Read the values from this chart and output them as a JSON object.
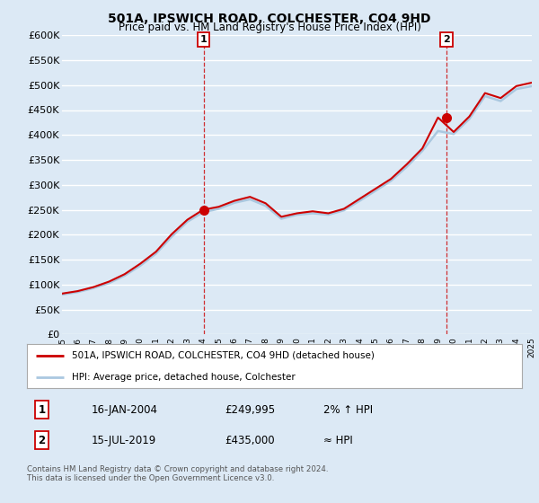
{
  "title": "501A, IPSWICH ROAD, COLCHESTER, CO4 9HD",
  "subtitle": "Price paid vs. HM Land Registry's House Price Index (HPI)",
  "bg_color": "#dce9f5",
  "plot_bg_color": "#dce9f5",
  "red_line_color": "#cc0000",
  "blue_line_color": "#aac8e0",
  "grid_color": "#ffffff",
  "ylim": [
    0,
    600000
  ],
  "yticks": [
    0,
    50000,
    100000,
    150000,
    200000,
    250000,
    300000,
    350000,
    400000,
    450000,
    500000,
    550000,
    600000
  ],
  "sale1_x": 2004.04,
  "sale1_y": 249995,
  "sale2_x": 2019.54,
  "sale2_y": 435000,
  "legend_label1": "501A, IPSWICH ROAD, COLCHESTER, CO4 9HD (detached house)",
  "legend_label2": "HPI: Average price, detached house, Colchester",
  "table_row1": [
    "1",
    "16-JAN-2004",
    "£249,995",
    "2% ↑ HPI"
  ],
  "table_row2": [
    "2",
    "15-JUL-2019",
    "£435,000",
    "≈ HPI"
  ],
  "footer": "Contains HM Land Registry data © Crown copyright and database right 2024.\nThis data is licensed under the Open Government Licence v3.0.",
  "xmin": 1995,
  "xmax": 2025,
  "years": [
    1995,
    1996,
    1997,
    1998,
    1999,
    2000,
    2001,
    2002,
    2003,
    2004,
    2005,
    2006,
    2007,
    2008,
    2009,
    2010,
    2011,
    2012,
    2013,
    2014,
    2015,
    2016,
    2017,
    2018,
    2019,
    2020,
    2021,
    2022,
    2023,
    2024,
    2025
  ],
  "hpi_values": [
    80000,
    85000,
    93000,
    103000,
    118000,
    138000,
    162000,
    196000,
    226000,
    245000,
    252000,
    264000,
    271000,
    258000,
    232000,
    240000,
    243000,
    240000,
    249000,
    268000,
    288000,
    308000,
    336000,
    368000,
    408000,
    402000,
    432000,
    478000,
    468000,
    492000,
    498000
  ],
  "red_values": [
    82000,
    87000,
    95000,
    106000,
    121000,
    142000,
    166000,
    201000,
    230000,
    249995,
    256000,
    268000,
    276000,
    263000,
    236000,
    243000,
    247000,
    243000,
    252000,
    272000,
    292000,
    312000,
    341000,
    373000,
    435000,
    406000,
    437000,
    484000,
    474000,
    498000,
    505000
  ]
}
